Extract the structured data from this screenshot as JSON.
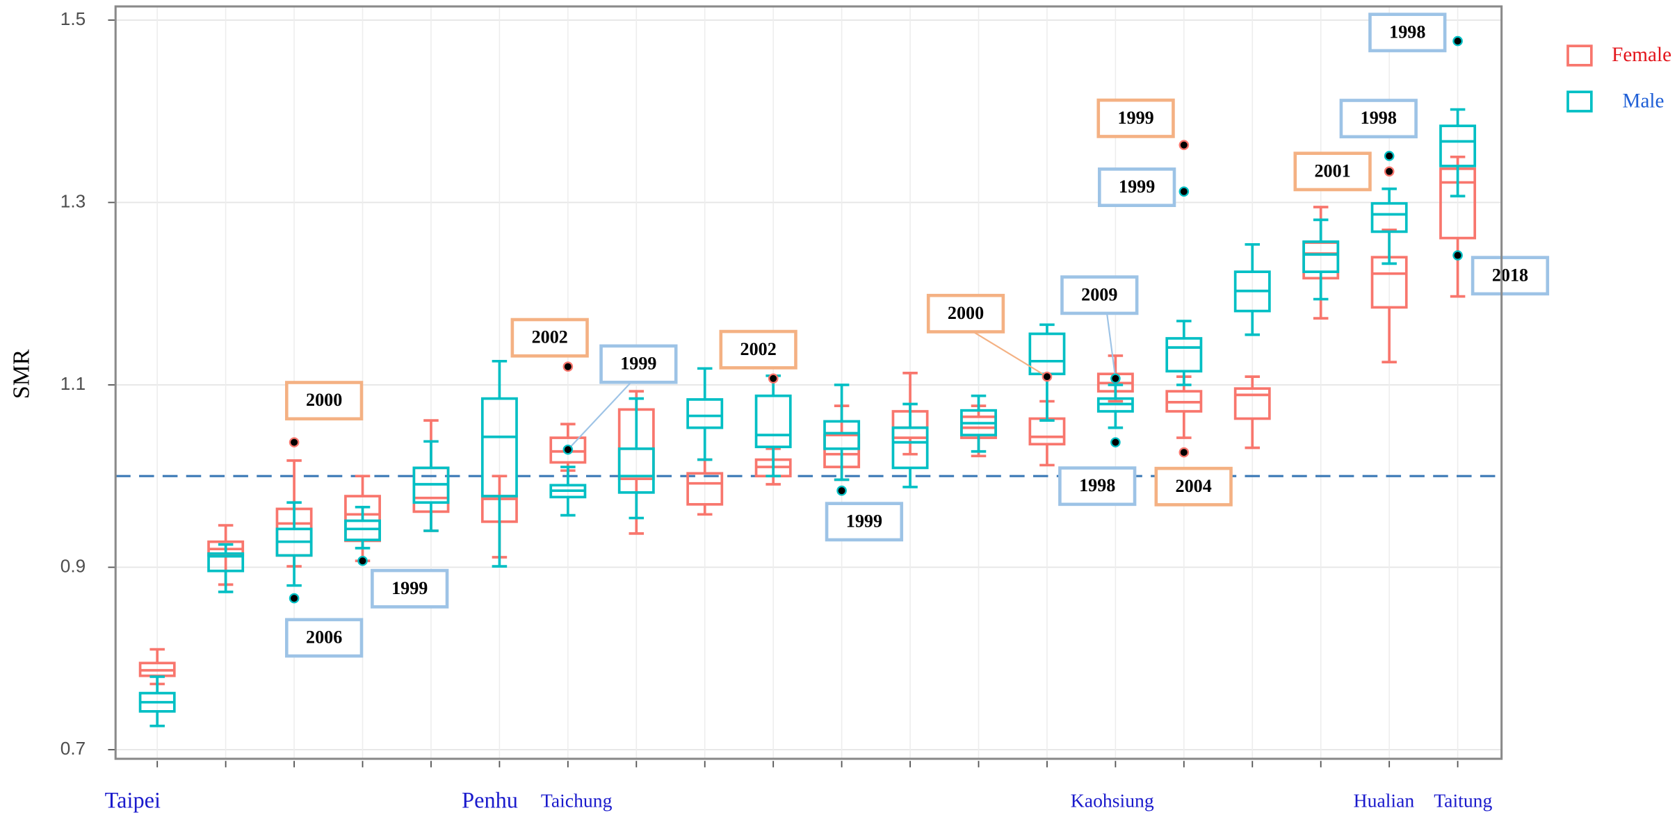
{
  "chart_data": {
    "type": "box",
    "y_label": "SMR",
    "categories": [
      "Taipei",
      null,
      null,
      null,
      null,
      "Penhu",
      "Taichung",
      null,
      null,
      null,
      null,
      null,
      null,
      null,
      "Kaohsiung",
      null,
      null,
      null,
      "Hualian",
      "Taitung"
    ],
    "category_color": "#1a1acc",
    "ylim": [
      0.69,
      1.515
    ],
    "yticks": [
      0.7,
      0.9,
      1.1,
      1.3,
      1.5
    ],
    "grid": true,
    "hline": 1,
    "hline_color": "#3a78b5",
    "legend": "right",
    "series": [
      {
        "name": "Female",
        "color": "#f8766d",
        "label_color": "#e3141b",
        "tag_color": "#f4b183",
        "boxes": [
          [
            0.772,
            0.781,
            0.787,
            0.795,
            0.81
          ],
          [
            0.881,
            0.913,
            0.92,
            0.928,
            0.946
          ],
          [
            0.901,
            0.913,
            0.948,
            0.964,
            1.017
          ],
          [
            0.907,
            0.929,
            0.958,
            0.978,
            1.0
          ],
          [
            0.94,
            0.961,
            0.976,
            1.009,
            1.061
          ],
          [
            0.911,
            0.95,
            0.975,
            0.978,
            1.0
          ],
          [
            1.006,
            1.015,
            1.027,
            1.042,
            1.057
          ],
          [
            0.937,
            0.997,
            1.03,
            1.073,
            1.093
          ],
          [
            0.958,
            0.969,
            0.992,
            1.003,
            1.018
          ],
          [
            0.991,
            1.0,
            1.01,
            1.018,
            1.03
          ],
          [
            0.996,
            1.01,
            1.024,
            1.045,
            1.077
          ],
          [
            1.024,
            1.042,
            1.053,
            1.071,
            1.113
          ],
          [
            1.022,
            1.042,
            1.053,
            1.065,
            1.077
          ],
          [
            1.012,
            1.035,
            1.043,
            1.063,
            1.082
          ],
          [
            1.082,
            1.093,
            1.102,
            1.112,
            1.132
          ],
          [
            1.042,
            1.071,
            1.081,
            1.093,
            1.109
          ],
          [
            1.031,
            1.063,
            1.089,
            1.096,
            1.109
          ],
          [
            1.173,
            1.217,
            1.244,
            1.256,
            1.295
          ],
          [
            1.125,
            1.185,
            1.222,
            1.24,
            1.27
          ],
          [
            1.197,
            1.261,
            1.322,
            1.337,
            1.35
          ]
        ],
        "outliers": [
          [],
          [],
          [
            {
              "value": 1.037,
              "year": 2000
            }
          ],
          [],
          [],
          [],
          [
            {
              "value": 1.12,
              "year": 2002
            }
          ],
          [],
          [],
          [
            {
              "value": 1.107,
              "year": 2002
            }
          ],
          [],
          [],
          [],
          [
            {
              "value": 1.109,
              "year": 2000
            }
          ],
          [],
          [
            {
              "value": 1.363,
              "year": 1999
            },
            {
              "value": 1.026,
              "year": 2004
            }
          ],
          [],
          [],
          [
            {
              "value": 1.334,
              "year": 2001
            }
          ],
          []
        ]
      },
      {
        "name": "Male",
        "color": "#00bfc4",
        "label_color": "#1f5fd6",
        "tag_color": "#9dc3e6",
        "boxes": [
          [
            0.726,
            0.742,
            0.752,
            0.762,
            0.78
          ],
          [
            0.873,
            0.896,
            0.912,
            0.915,
            0.925
          ],
          [
            0.88,
            0.913,
            0.928,
            0.942,
            0.971
          ],
          [
            0.921,
            0.93,
            0.942,
            0.951,
            0.966
          ],
          [
            0.94,
            0.971,
            0.991,
            1.009,
            1.038
          ],
          [
            0.901,
            0.978,
            1.043,
            1.085,
            1.126
          ],
          [
            0.957,
            0.977,
            0.984,
            0.99,
            1.01
          ],
          [
            0.954,
            0.982,
            1.0,
            1.03,
            1.085
          ],
          [
            1.018,
            1.053,
            1.066,
            1.084,
            1.118
          ],
          [
            1.0,
            1.032,
            1.045,
            1.088,
            1.11
          ],
          [
            0.996,
            1.03,
            1.047,
            1.06,
            1.1
          ],
          [
            0.988,
            1.009,
            1.037,
            1.053,
            1.079
          ],
          [
            1.027,
            1.045,
            1.058,
            1.072,
            1.088
          ],
          [
            1.061,
            1.112,
            1.126,
            1.156,
            1.166
          ],
          [
            1.053,
            1.071,
            1.079,
            1.085,
            1.1
          ],
          [
            1.1,
            1.115,
            1.141,
            1.151,
            1.17
          ],
          [
            1.155,
            1.181,
            1.203,
            1.224,
            1.254
          ],
          [
            1.194,
            1.224,
            1.243,
            1.257,
            1.281
          ],
          [
            1.233,
            1.268,
            1.287,
            1.299,
            1.315
          ],
          [
            1.307,
            1.34,
            1.367,
            1.384,
            1.402
          ]
        ],
        "outliers": [
          [],
          [],
          [
            {
              "value": 0.866,
              "year": 2006
            }
          ],
          [
            {
              "value": 0.907,
              "year": 1999
            }
          ],
          [],
          [],
          [
            {
              "value": 1.029,
              "year": 1999
            }
          ],
          [],
          [],
          [],
          [
            {
              "value": 0.984,
              "year": 1999
            }
          ],
          [],
          [],
          [],
          [
            {
              "value": 1.107,
              "year": 2009
            },
            {
              "value": 1.037,
              "year": 1998
            }
          ],
          [
            {
              "value": 1.312,
              "year": 1999
            }
          ],
          [],
          [],
          [
            {
              "value": 1.351,
              "year": 1998
            }
          ],
          [
            {
              "value": 1.477,
              "year": 1998
            },
            {
              "value": 1.242,
              "year": 2018
            }
          ]
        ]
      }
    ]
  }
}
